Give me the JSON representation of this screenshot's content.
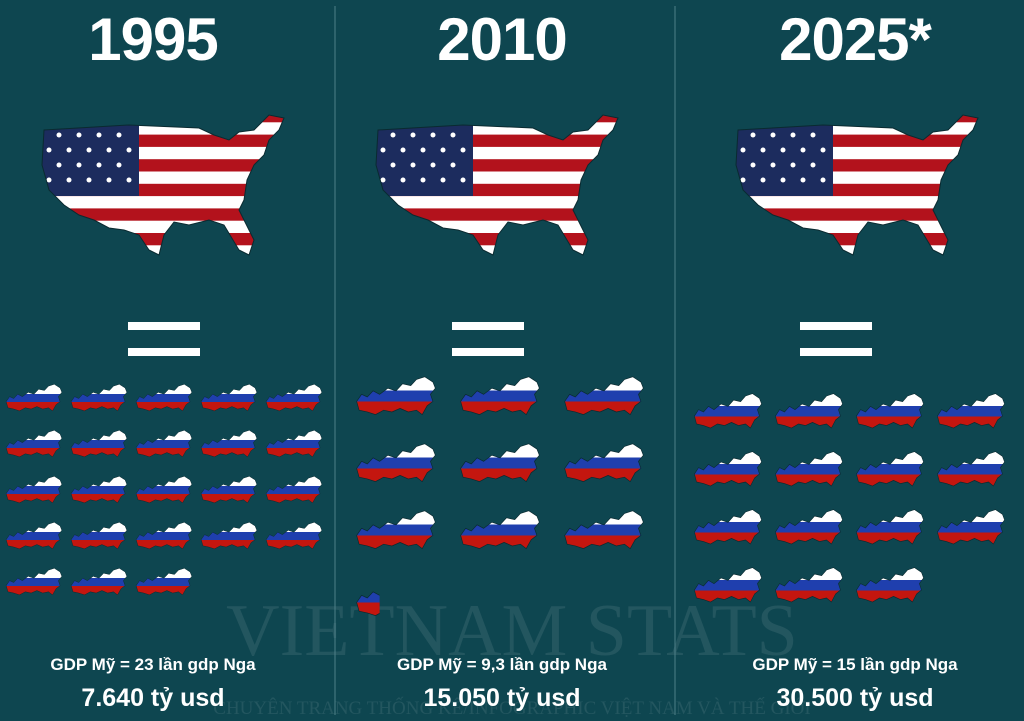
{
  "panels": [
    {
      "year": "1995",
      "ratio": 23,
      "comparison": "GDP Mỹ  = 23 lần gdp Nga",
      "gdp": "7.640 tỷ usd"
    },
    {
      "year": "2010",
      "ratio": 9.3,
      "comparison": "GDP Mỹ  = 9,3 lần gdp Nga",
      "gdp": "15.050 tỷ usd"
    },
    {
      "year": "2025*",
      "ratio": 15,
      "comparison": "GDP Mỹ  = 15 lần gdp Nga",
      "gdp": "30.500 tỷ usd"
    }
  ],
  "watermark": {
    "title": "VIETNAM STATS",
    "subtitle": "CHUYÊN TRANG THỐNG KÊ/INFOGRAPHIC VIỆT NAM VÀ THẾ GIỚI"
  }
}
